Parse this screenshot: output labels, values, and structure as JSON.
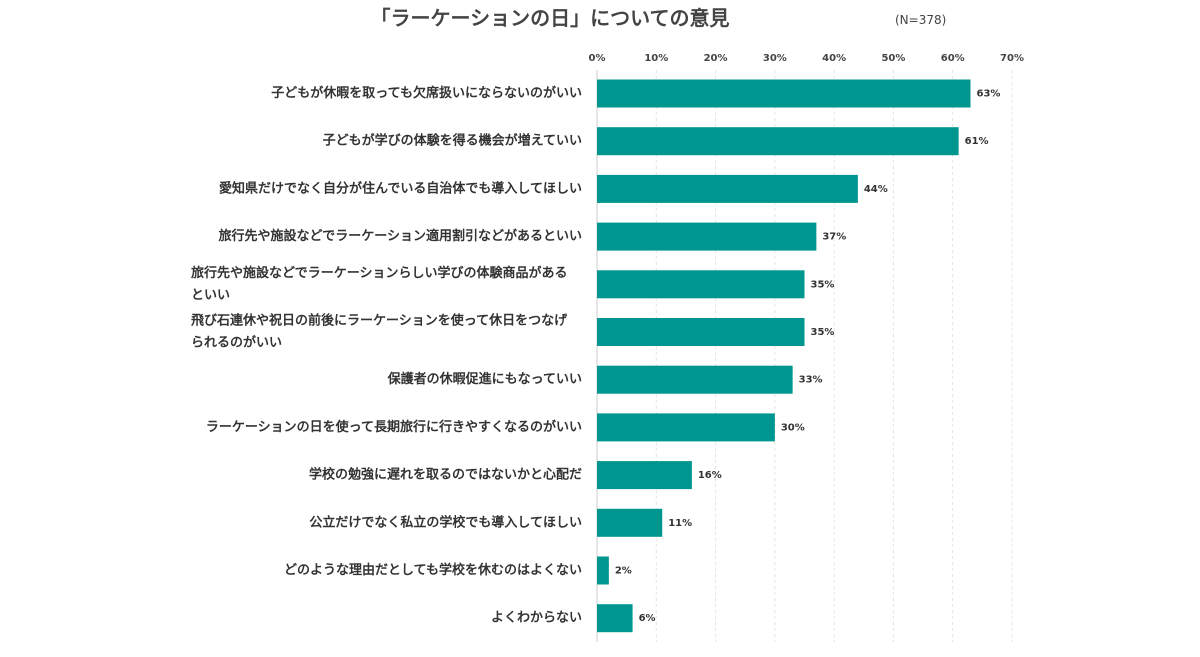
{
  "chart_data": {
    "type": "bar",
    "orientation": "horizontal",
    "title": "「ラーケーションの日」についての意見",
    "note": "(N=378)",
    "xlim": [
      0,
      70
    ],
    "xticks": [
      "0%",
      "10%",
      "20%",
      "30%",
      "40%",
      "50%",
      "60%",
      "70%"
    ],
    "grid": true,
    "bar_color": "#009690",
    "categories": [
      [
        "子どもが休暇を取っても欠席扱いにならないのがいい"
      ],
      [
        "子どもが学びの体験を得る機会が増えていい"
      ],
      [
        "愛知県だけでなく自分が住んでいる自治体でも導入してほしい"
      ],
      [
        "旅行先や施設などでラーケーション適用割引などがあるといい"
      ],
      [
        "旅行先や施設などでラーケーションらしい学びの体験商品がある",
        "といい"
      ],
      [
        "飛び石連休や祝日の前後にラーケーションを使って休日をつなげ",
        "られるのがいい"
      ],
      [
        "保護者の休暇促進にもなっていい"
      ],
      [
        "ラーケーションの日を使って長期旅行に行きやすくなるのがいい"
      ],
      [
        "学校の勉強に遅れを取るのではないかと心配だ"
      ],
      [
        "公立だけでなく私立の学校でも導入してほしい"
      ],
      [
        "どのような理由だとしても学校を休むのはよくない"
      ],
      [
        "よくわからない"
      ]
    ],
    "values": [
      63,
      61,
      44,
      37,
      35,
      35,
      33,
      30,
      16,
      11,
      2,
      6
    ],
    "value_labels": [
      "63%",
      "61%",
      "44%",
      "37%",
      "35%",
      "35%",
      "33%",
      "30%",
      "16%",
      "11%",
      "2%",
      "6%"
    ]
  }
}
